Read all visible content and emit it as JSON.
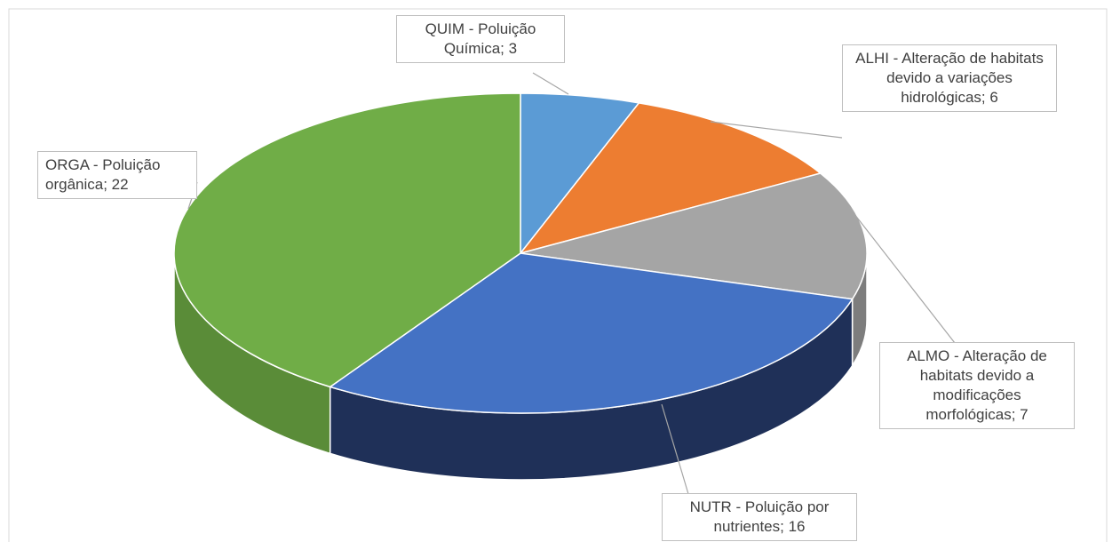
{
  "chart_data": {
    "type": "pie",
    "values": [
      3,
      6,
      7,
      16,
      22
    ],
    "value_labels": [
      "QUIM - Poluição Química; 3",
      "ALHI - Alteração de habitats devido a variações hidrológicas; 6",
      "ALMO - Alteração de habitats devido a modificações morfológicas; 7",
      "NUTR - Poluição por nutrientes; 16",
      "ORGA - Poluição orgânica; 22"
    ],
    "colors": [
      "#5b9bd5",
      "#ed7d31",
      "#a5a5a5",
      "#4472c4",
      "#70ad47"
    ],
    "side_colors": [
      "#3f77ad",
      "#b85c20",
      "#7d7d7d",
      "#1f3058",
      "#5a8c38"
    ]
  }
}
